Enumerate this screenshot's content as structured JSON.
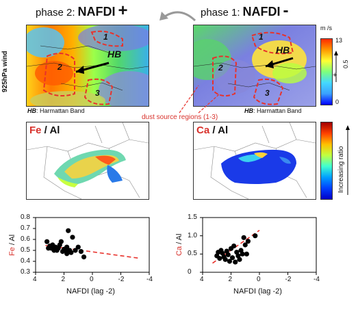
{
  "header": {
    "left": {
      "prefix": "phase 2:",
      "index": "NAFDI",
      "sign": "+"
    },
    "right": {
      "prefix": "phase 1:",
      "index": "NAFDI",
      "sign": "-"
    }
  },
  "wind_panel": {
    "ylabel": "925hPa wind",
    "hb_label": "HB",
    "caption_key": "HB",
    "caption_rest": ": Harmattan Band",
    "region_numbers": [
      "1",
      "2",
      "3"
    ],
    "dust_label": "dust source regions (1-3)"
  },
  "colorbar_wind": {
    "unit": "m /s",
    "max": "13",
    "mid": "0.5",
    "min": "0",
    "plus": "+",
    "colors": [
      "#0000ff",
      "#3aa0ff",
      "#44d8ff",
      "#7dff7d",
      "#ffff33",
      "#ff9a00",
      "#ff2a00"
    ]
  },
  "ratio_panel": {
    "left": {
      "numerator": "Fe",
      "rest": " / Al"
    },
    "right": {
      "numerator": "Ca",
      "rest": " / Al"
    }
  },
  "colorbar_ratio": {
    "label": "Increasing ratio",
    "colors": [
      "#0000c8",
      "#0040ff",
      "#00a0ff",
      "#40ffd0",
      "#c0ff40",
      "#ffc000",
      "#ff4000",
      "#a00000"
    ]
  },
  "colors": {
    "accent_red": "#d8312b",
    "dashed": "#e8312b"
  },
  "chart_data": [
    {
      "type": "scatter",
      "title": "",
      "ylabel_num": "Fe",
      "ylabel_rest": " / Al",
      "xlabel": "NAFDI (lag -2)",
      "xlim": [
        4,
        -4
      ],
      "ylim": [
        0.3,
        0.8
      ],
      "xticks": [
        "4",
        "2",
        "0",
        "-2",
        "-4"
      ],
      "yticks": [
        "0.8",
        "0.7",
        "0.6",
        "0.5",
        "0.4",
        "0.3"
      ],
      "x": [
        3.2,
        3.0,
        2.9,
        2.8,
        2.7,
        2.6,
        2.5,
        2.4,
        2.3,
        2.2,
        2.1,
        2.0,
        1.9,
        1.8,
        1.7,
        1.6,
        1.5,
        1.4,
        1.2,
        1.0,
        0.8,
        0.6,
        3.1,
        2.5,
        1.8
      ],
      "y": [
        0.58,
        0.54,
        0.52,
        0.55,
        0.5,
        0.53,
        0.51,
        0.52,
        0.55,
        0.58,
        0.49,
        0.51,
        0.5,
        0.53,
        0.68,
        0.5,
        0.48,
        0.62,
        0.5,
        0.53,
        0.49,
        0.44,
        0.52,
        0.5,
        0.47
      ],
      "trend": {
        "x": [
          3.3,
          -3.2
        ],
        "y": [
          0.545,
          0.43
        ]
      }
    },
    {
      "type": "scatter",
      "title": "",
      "ylabel_num": "Ca",
      "ylabel_rest": " / Al",
      "xlabel": "NAFDI (lag -2)",
      "xlim": [
        4,
        -4
      ],
      "ylim": [
        0,
        1.5
      ],
      "xticks": [
        "4",
        "2",
        "0",
        "-2",
        "-4"
      ],
      "yticks": [
        "1.5",
        "1.0",
        "0.5",
        "0"
      ],
      "x": [
        3.0,
        2.9,
        2.8,
        2.7,
        2.6,
        2.5,
        2.4,
        2.3,
        2.2,
        2.1,
        2.0,
        1.9,
        1.8,
        1.7,
        1.6,
        1.5,
        1.4,
        1.3,
        1.2,
        1.1,
        1.0,
        0.9,
        0.8,
        0.3
      ],
      "y": [
        0.45,
        0.55,
        0.38,
        0.6,
        0.52,
        0.42,
        0.35,
        0.58,
        0.48,
        0.3,
        0.65,
        0.4,
        0.72,
        0.28,
        0.55,
        0.45,
        0.35,
        0.6,
        0.5,
        0.95,
        0.75,
        0.5,
        0.85,
        1.0
      ],
      "trend": {
        "x": [
          3.3,
          0.0
        ],
        "y": [
          0.25,
          1.15
        ]
      }
    }
  ]
}
